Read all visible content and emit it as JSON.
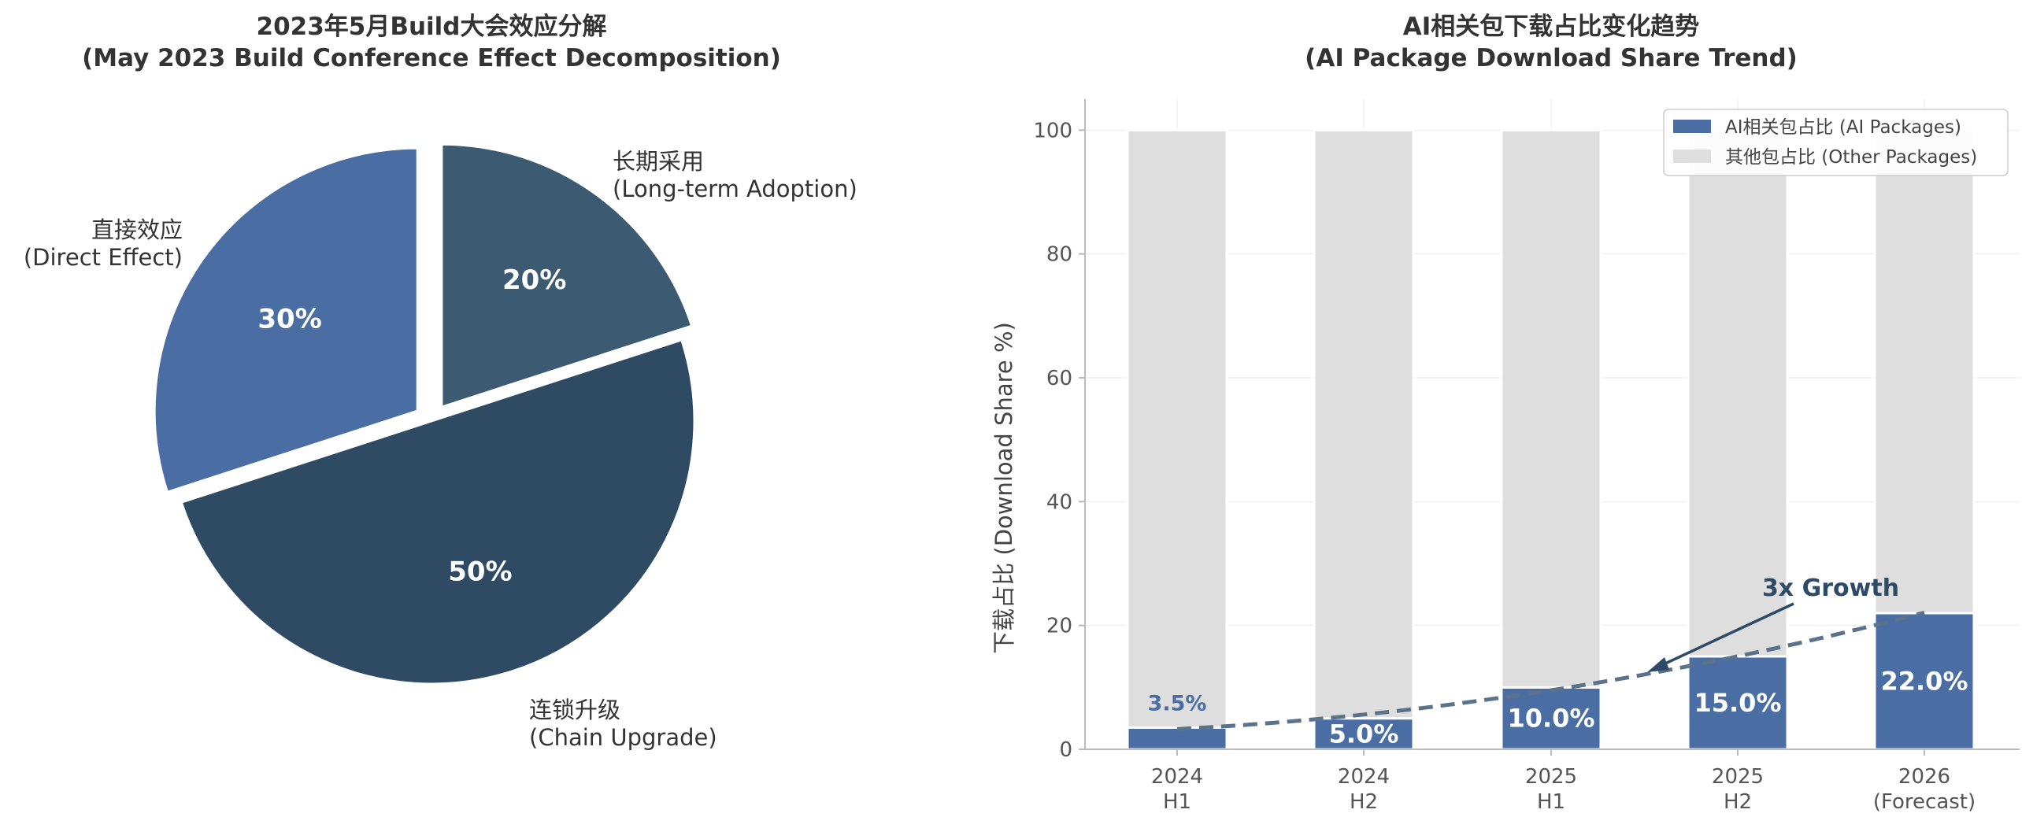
{
  "chart_data": [
    {
      "type": "pie",
      "title_line1": "2023年5月Build大会效应分解",
      "title_line2": "(May 2023 Build Conference Effect Decomposition)",
      "slices": [
        {
          "label_zh": "直接效应",
          "label_en": "(Direct Effect)",
          "value": 30,
          "pct_label": "30%",
          "color": "#4a6ea3"
        },
        {
          "label_zh": "长期采用",
          "label_en": "(Long-term Adoption)",
          "value": 20,
          "pct_label": "20%",
          "color": "#3d5a73"
        },
        {
          "label_zh": "连锁升级",
          "label_en": "(Chain Upgrade)",
          "value": 50,
          "pct_label": "50%",
          "color": "#2f4a63"
        }
      ]
    },
    {
      "type": "bar",
      "stacked": true,
      "title_line1": "AI相关包下载占比变化趋势",
      "title_line2": "(AI Package Download Share Trend)",
      "ylabel": "下载占比 (Download Share %)",
      "ylim": [
        0,
        105
      ],
      "yticks": [
        "0",
        "20",
        "40",
        "60",
        "80",
        "100"
      ],
      "categories": [
        {
          "line1": "2024",
          "line2": "H1"
        },
        {
          "line1": "2024",
          "line2": "H2"
        },
        {
          "line1": "2025",
          "line2": "H1"
        },
        {
          "line1": "2025",
          "line2": "H2"
        },
        {
          "line1": "2026",
          "line2": "(Forecast)"
        }
      ],
      "series": [
        {
          "name": "AI相关包占比 (AI Packages)",
          "values": [
            3.5,
            5.0,
            10.0,
            15.0,
            22.0
          ],
          "color": "#4a6ea3"
        },
        {
          "name": "其他包占比 (Other Packages)",
          "values": [
            96.5,
            95.0,
            90.0,
            85.0,
            78.0
          ],
          "color": "#dedede"
        }
      ],
      "data_labels": [
        "3.5%",
        "5.0%",
        "10.0%",
        "15.0%",
        "22.0%"
      ],
      "trend_line": {
        "style": "dashed",
        "color": "#5a728a"
      },
      "annotation": {
        "text": "3x Growth"
      },
      "legend_position": "top-right",
      "grid": true
    }
  ]
}
